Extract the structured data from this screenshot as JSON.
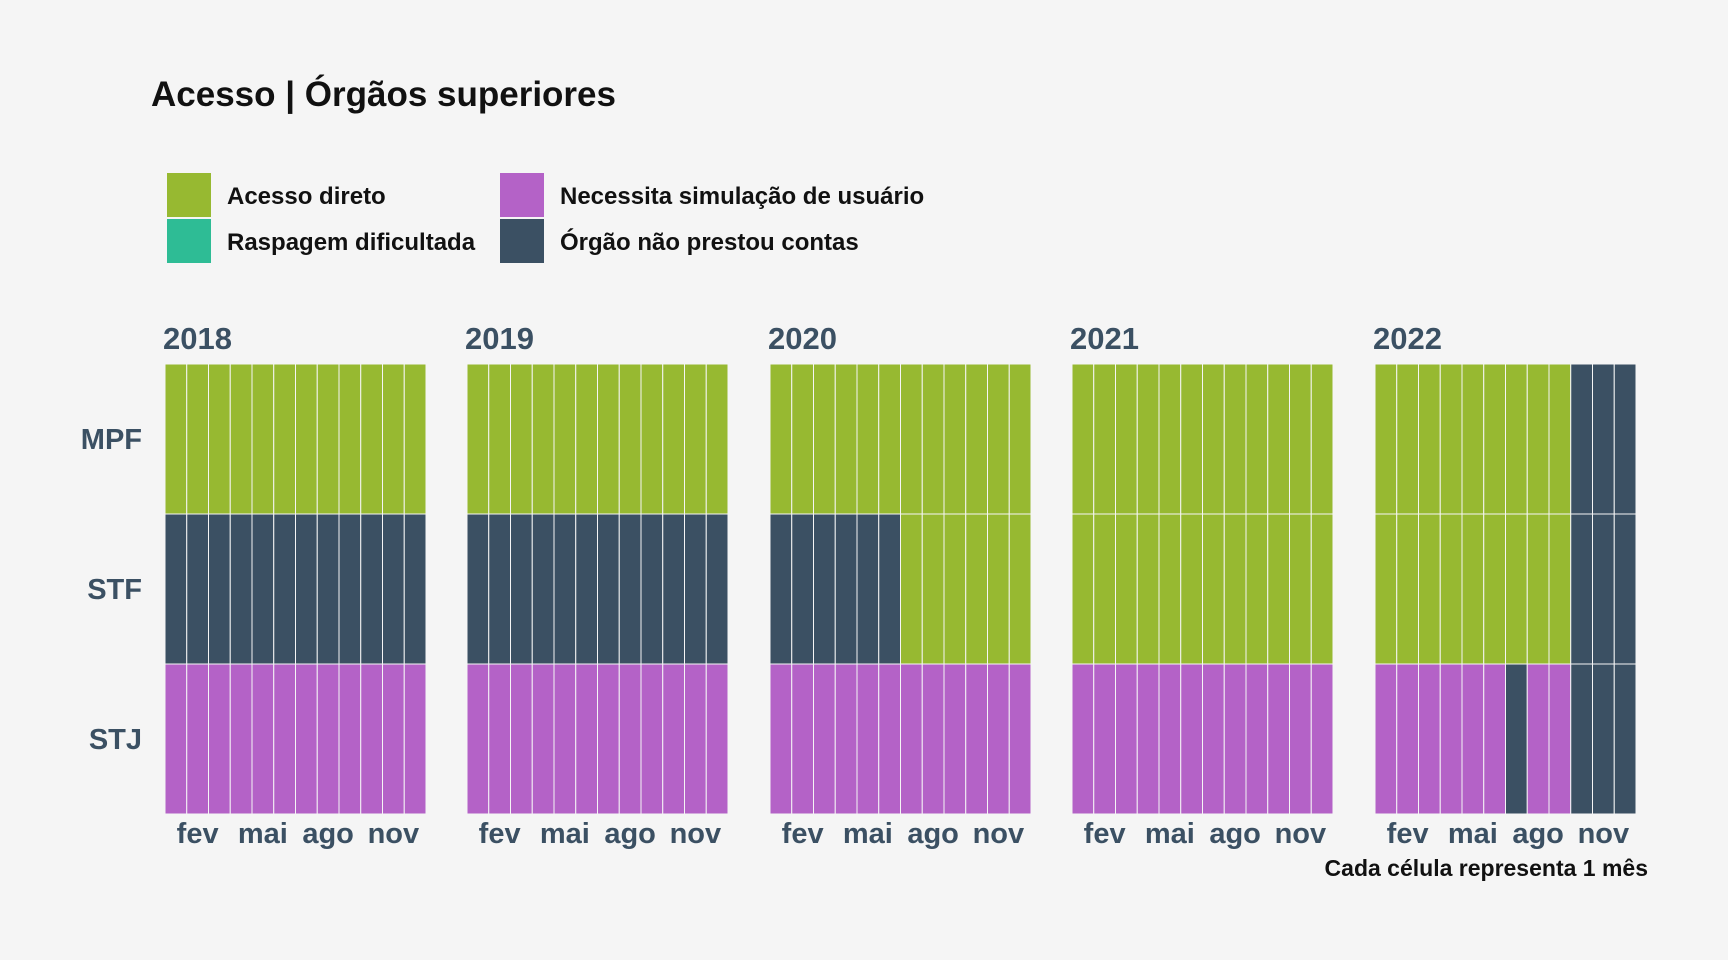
{
  "chart_data": {
    "type": "heatmap",
    "title": "Acesso | Órgãos superiores",
    "caption": "Cada célula representa 1 mês",
    "legend_position": "top-left",
    "legend": [
      {
        "key": "direto",
        "label": "Acesso direto",
        "color": "#97b931"
      },
      {
        "key": "raspagem",
        "label": "Raspagem dificultada",
        "color": "#2ebc95"
      },
      {
        "key": "simulacao",
        "label": "Necessita simulação de usuário",
        "color": "#b462c7"
      },
      {
        "key": "nao_prestou",
        "label": "Órgão não prestou contas",
        "color": "#3b5063"
      }
    ],
    "rows": [
      "MPF",
      "STF",
      "STJ"
    ],
    "months_per_panel": 12,
    "month_ticks": [
      {
        "month": 2,
        "label": "fev"
      },
      {
        "month": 5,
        "label": "mai"
      },
      {
        "month": 8,
        "label": "ago"
      },
      {
        "month": 11,
        "label": "nov"
      }
    ],
    "panels": [
      {
        "year": "2018",
        "cells": {
          "MPF": [
            "direto",
            "direto",
            "direto",
            "direto",
            "direto",
            "direto",
            "direto",
            "direto",
            "direto",
            "direto",
            "direto",
            "direto"
          ],
          "STF": [
            "nao_prestou",
            "nao_prestou",
            "nao_prestou",
            "nao_prestou",
            "nao_prestou",
            "nao_prestou",
            "nao_prestou",
            "nao_prestou",
            "nao_prestou",
            "nao_prestou",
            "nao_prestou",
            "nao_prestou"
          ],
          "STJ": [
            "simulacao",
            "simulacao",
            "simulacao",
            "simulacao",
            "simulacao",
            "simulacao",
            "simulacao",
            "simulacao",
            "simulacao",
            "simulacao",
            "simulacao",
            "simulacao"
          ]
        }
      },
      {
        "year": "2019",
        "cells": {
          "MPF": [
            "direto",
            "direto",
            "direto",
            "direto",
            "direto",
            "direto",
            "direto",
            "direto",
            "direto",
            "direto",
            "direto",
            "direto"
          ],
          "STF": [
            "nao_prestou",
            "nao_prestou",
            "nao_prestou",
            "nao_prestou",
            "nao_prestou",
            "nao_prestou",
            "nao_prestou",
            "nao_prestou",
            "nao_prestou",
            "nao_prestou",
            "nao_prestou",
            "nao_prestou"
          ],
          "STJ": [
            "simulacao",
            "simulacao",
            "simulacao",
            "simulacao",
            "simulacao",
            "simulacao",
            "simulacao",
            "simulacao",
            "simulacao",
            "simulacao",
            "simulacao",
            "simulacao"
          ]
        }
      },
      {
        "year": "2020",
        "cells": {
          "MPF": [
            "direto",
            "direto",
            "direto",
            "direto",
            "direto",
            "direto",
            "direto",
            "direto",
            "direto",
            "direto",
            "direto",
            "direto"
          ],
          "STF": [
            "nao_prestou",
            "nao_prestou",
            "nao_prestou",
            "nao_prestou",
            "nao_prestou",
            "nao_prestou",
            "direto",
            "direto",
            "direto",
            "direto",
            "direto",
            "direto"
          ],
          "STJ": [
            "simulacao",
            "simulacao",
            "simulacao",
            "simulacao",
            "simulacao",
            "simulacao",
            "simulacao",
            "simulacao",
            "simulacao",
            "simulacao",
            "simulacao",
            "simulacao"
          ]
        }
      },
      {
        "year": "2021",
        "cells": {
          "MPF": [
            "direto",
            "direto",
            "direto",
            "direto",
            "direto",
            "direto",
            "direto",
            "direto",
            "direto",
            "direto",
            "direto",
            "direto"
          ],
          "STF": [
            "direto",
            "direto",
            "direto",
            "direto",
            "direto",
            "direto",
            "direto",
            "direto",
            "direto",
            "direto",
            "direto",
            "direto"
          ],
          "STJ": [
            "simulacao",
            "simulacao",
            "simulacao",
            "simulacao",
            "simulacao",
            "simulacao",
            "simulacao",
            "simulacao",
            "simulacao",
            "simulacao",
            "simulacao",
            "simulacao"
          ]
        }
      },
      {
        "year": "2022",
        "cells": {
          "MPF": [
            "direto",
            "direto",
            "direto",
            "direto",
            "direto",
            "direto",
            "direto",
            "direto",
            "direto",
            "nao_prestou",
            "nao_prestou",
            "nao_prestou"
          ],
          "STF": [
            "direto",
            "direto",
            "direto",
            "direto",
            "direto",
            "direto",
            "direto",
            "direto",
            "direto",
            "nao_prestou",
            "nao_prestou",
            "nao_prestou"
          ],
          "STJ": [
            "simulacao",
            "simulacao",
            "simulacao",
            "simulacao",
            "simulacao",
            "simulacao",
            "nao_prestou",
            "simulacao",
            "simulacao",
            "nao_prestou",
            "nao_prestou",
            "nao_prestou"
          ]
        }
      }
    ]
  }
}
